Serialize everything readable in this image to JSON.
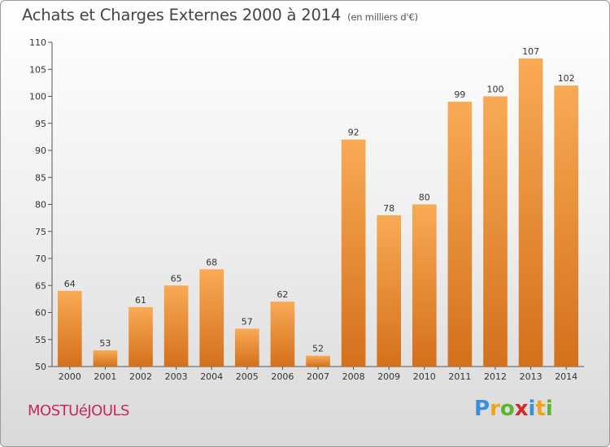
{
  "title": "Achats et Charges Externes 2000 à 2014",
  "subtitle": "(en milliers d'€)",
  "commune": "MOSTUéJOULS",
  "logo": {
    "letters": [
      "P",
      "r",
      "o",
      "x",
      "i",
      "t",
      "i"
    ],
    "colors": [
      "#3a8fd6",
      "#f2a21c",
      "#5cb531",
      "#d8262e",
      "#3a8fd6",
      "#f2a21c",
      "#5cb531"
    ]
  },
  "colors": {
    "bar_light": "#f9aa55",
    "bar_dark": "#d4701c",
    "commune": "#c8285a"
  },
  "chart_data": {
    "type": "bar",
    "categories": [
      "2000",
      "2001",
      "2002",
      "2003",
      "2004",
      "2005",
      "2006",
      "2007",
      "2008",
      "2009",
      "2010",
      "2011",
      "2012",
      "2013",
      "2014"
    ],
    "values": [
      64,
      53,
      61,
      65,
      68,
      57,
      62,
      52,
      92,
      78,
      80,
      99,
      100,
      107,
      102
    ],
    "ylim": [
      50,
      110
    ],
    "yticks": [
      50,
      55,
      60,
      65,
      70,
      75,
      80,
      85,
      90,
      95,
      100,
      105,
      110
    ],
    "grid": false
  }
}
